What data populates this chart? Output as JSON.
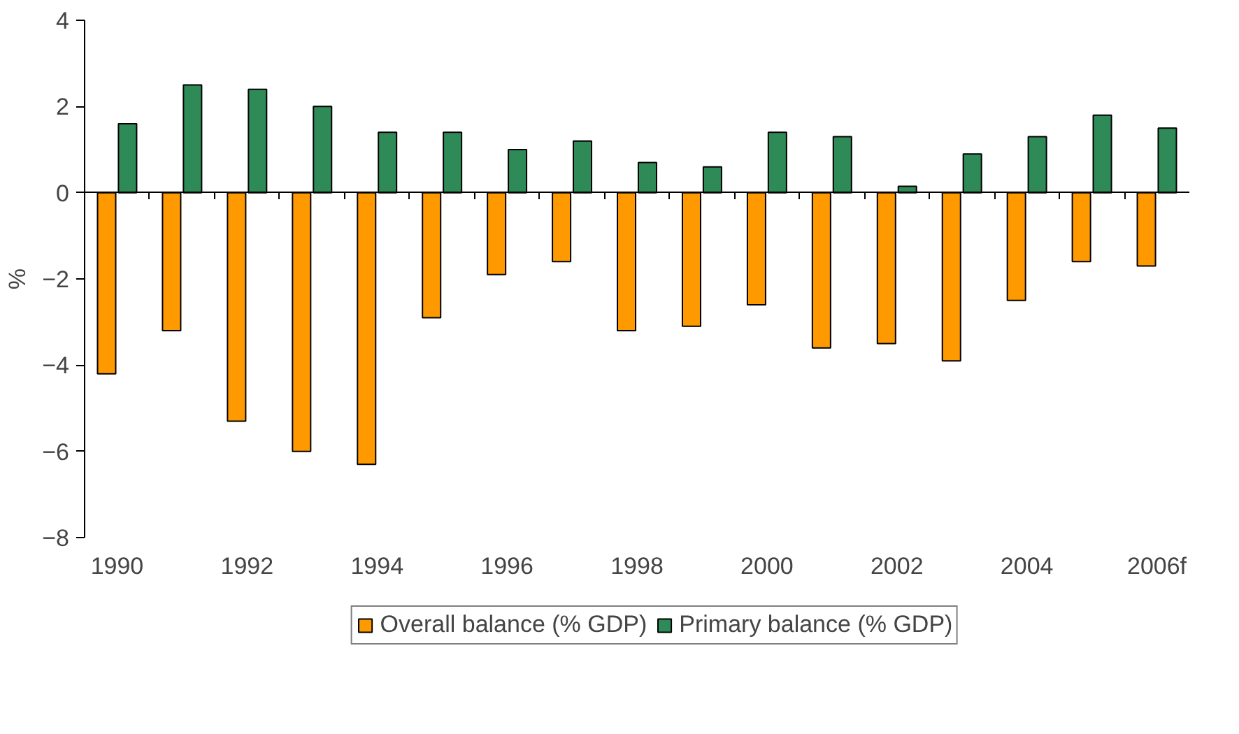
{
  "chart_data": {
    "type": "bar",
    "ylabel": "%",
    "categories": [
      "1990",
      null,
      "1992",
      null,
      "1994",
      null,
      "1996",
      null,
      "1998",
      null,
      "2000",
      null,
      "2002",
      null,
      "2004",
      null,
      "2006f"
    ],
    "series": [
      {
        "name": "Overall balance (% GDP)",
        "color": "#ff9900",
        "values": [
          -4.2,
          -3.2,
          -5.3,
          -6.0,
          -6.3,
          -2.9,
          -1.9,
          -1.6,
          -3.2,
          -3.1,
          -2.6,
          -3.6,
          -3.5,
          -3.9,
          -2.5,
          -1.6,
          -1.7
        ]
      },
      {
        "name": "Primary balance (% GDP)",
        "color": "#2e8b57",
        "values": [
          1.6,
          2.5,
          2.4,
          2.0,
          1.4,
          1.4,
          1.0,
          1.2,
          0.7,
          0.6,
          1.4,
          1.3,
          0.15,
          0.9,
          1.3,
          1.8,
          1.5
        ]
      }
    ],
    "ylim": [
      -8,
      4
    ],
    "yticks": [
      -8,
      -6,
      -4,
      -2,
      0,
      2,
      4
    ],
    "legend": "bottom"
  }
}
